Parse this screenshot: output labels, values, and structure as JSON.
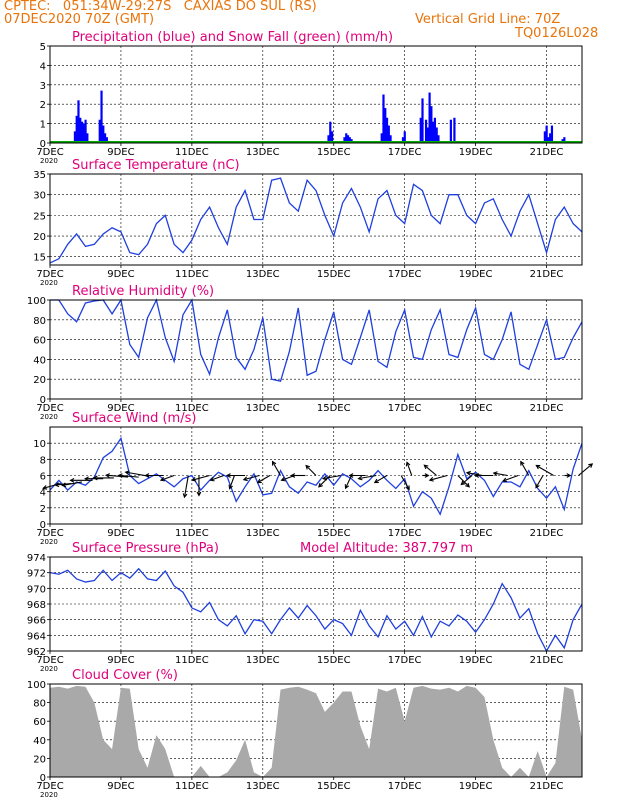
{
  "header": {
    "line1": "CPTEC:   051:34W-29:27S   CAXIAS DO SUL (RS)",
    "line2": "07DEC2020 70Z (GMT)",
    "grid_note": "Vertical Grid Line: 70Z",
    "code": "TQ0126L028",
    "color": "#e8740c"
  },
  "colors": {
    "title": "#e0007a",
    "line": "#1f3fdf",
    "precip": "#0000ff",
    "snow": "#00aa00",
    "cloud": "#a9a9a9",
    "arrow": "#000000"
  },
  "x_axis": {
    "start_day": 7,
    "end_day": 22,
    "tick_labels": [
      "7DEC",
      "9DEC",
      "11DEC",
      "13DEC",
      "15DEC",
      "17DEC",
      "19DEC",
      "21DEC"
    ],
    "tick_days": [
      7,
      9,
      11,
      13,
      15,
      17,
      19,
      21
    ],
    "corner_label": "2020"
  },
  "chart_data": [
    {
      "type": "bar",
      "title": "Precipitation (blue) and Snow Fall (green) (mm/h)",
      "ylim": [
        0,
        5
      ],
      "yticks": [
        0,
        1,
        2,
        3,
        4,
        5
      ],
      "series": [
        {
          "name": "Precipitation",
          "x": [
            7.7,
            7.75,
            7.8,
            7.85,
            7.9,
            7.95,
            8.0,
            8.05,
            8.4,
            8.45,
            8.5,
            8.55,
            8.6,
            14.85,
            14.9,
            14.95,
            15.3,
            15.35,
            15.4,
            15.45,
            15.5,
            16.35,
            16.4,
            16.45,
            16.5,
            16.55,
            16.6,
            16.95,
            17.0,
            17.45,
            17.5,
            17.6,
            17.65,
            17.7,
            17.75,
            17.8,
            17.85,
            17.9,
            17.95,
            18.3,
            18.4,
            20.95,
            21.0,
            21.05,
            21.1,
            21.15,
            21.45,
            21.5
          ],
          "values": [
            0.6,
            1.4,
            2.2,
            1.3,
            1.1,
            1.0,
            1.2,
            0.5,
            1.2,
            2.7,
            0.9,
            0.5,
            0.3,
            0.4,
            1.1,
            0.6,
            0.3,
            0.5,
            0.4,
            0.3,
            0.2,
            0.5,
            2.5,
            1.8,
            1.3,
            0.9,
            0.4,
            0.3,
            0.6,
            1.3,
            2.3,
            1.2,
            0.8,
            2.6,
            1.9,
            1.1,
            1.3,
            0.8,
            0.4,
            1.2,
            1.3,
            0.6,
            0.9,
            0.3,
            0.5,
            0.9,
            0.2,
            0.3
          ]
        },
        {
          "name": "Snow Fall",
          "x": [],
          "values": []
        }
      ]
    },
    {
      "type": "line",
      "title": "Surface Temperature (nC)",
      "ylim": [
        13,
        35
      ],
      "yticks": [
        15,
        20,
        25,
        30,
        35
      ],
      "x": [
        7.0,
        7.25,
        7.5,
        7.75,
        8.0,
        8.25,
        8.5,
        8.75,
        9.0,
        9.25,
        9.5,
        9.75,
        10.0,
        10.25,
        10.5,
        10.75,
        11.0,
        11.25,
        11.5,
        11.75,
        12.0,
        12.25,
        12.5,
        12.75,
        13.0,
        13.25,
        13.5,
        13.75,
        14.0,
        14.25,
        14.5,
        14.75,
        15.0,
        15.25,
        15.5,
        15.75,
        16.0,
        16.25,
        16.5,
        16.75,
        17.0,
        17.25,
        17.5,
        17.75,
        18.0,
        18.25,
        18.5,
        18.75,
        19.0,
        19.25,
        19.5,
        19.75,
        20.0,
        20.25,
        20.5,
        20.75,
        21.0,
        21.25,
        21.5,
        21.75,
        22.0
      ],
      "values": [
        13.5,
        14.5,
        18,
        20.5,
        17.5,
        18,
        20.5,
        22,
        21,
        16,
        15.5,
        18,
        23,
        25,
        18,
        16,
        19,
        24,
        27,
        22,
        18,
        27,
        31,
        24,
        24,
        33.5,
        34,
        28,
        26,
        33.5,
        31,
        25,
        20,
        28,
        31.5,
        27,
        21,
        29,
        31,
        25,
        23,
        32.5,
        31,
        25,
        23,
        30,
        30,
        25,
        23,
        28,
        29,
        24,
        20,
        26,
        30,
        23,
        16,
        24,
        27,
        23,
        21
      ]
    },
    {
      "type": "line",
      "title": "Relative Humidity (%)",
      "ylim": [
        0,
        100
      ],
      "yticks": [
        0,
        20,
        40,
        60,
        80,
        100
      ],
      "x": [
        7.0,
        7.25,
        7.5,
        7.75,
        8.0,
        8.25,
        8.5,
        8.75,
        9.0,
        9.25,
        9.5,
        9.75,
        10.0,
        10.25,
        10.5,
        10.75,
        11.0,
        11.25,
        11.5,
        11.75,
        12.0,
        12.25,
        12.5,
        12.75,
        13.0,
        13.25,
        13.5,
        13.75,
        14.0,
        14.25,
        14.5,
        14.75,
        15.0,
        15.25,
        15.5,
        15.75,
        16.0,
        16.25,
        16.5,
        16.75,
        17.0,
        17.25,
        17.5,
        17.75,
        18.0,
        18.25,
        18.5,
        18.75,
        19.0,
        19.25,
        19.5,
        19.75,
        20.0,
        20.25,
        20.5,
        20.75,
        21.0,
        21.25,
        21.5,
        21.75,
        22.0
      ],
      "values": [
        100,
        100,
        86,
        78,
        97,
        99,
        100,
        86,
        100,
        55,
        42,
        82,
        100,
        62,
        38,
        85,
        100,
        45,
        25,
        62,
        90,
        42,
        30,
        50,
        82,
        20,
        18,
        48,
        92,
        24,
        28,
        60,
        88,
        40,
        35,
        62,
        90,
        38,
        32,
        68,
        90,
        42,
        40,
        70,
        90,
        45,
        42,
        70,
        92,
        45,
        40,
        60,
        88,
        35,
        30,
        55,
        80,
        40,
        42,
        62,
        78
      ]
    },
    {
      "type": "line",
      "title": "Surface Wind (m/s)",
      "ylim": [
        0,
        12
      ],
      "yticks": [
        0,
        2,
        4,
        6,
        8,
        10
      ],
      "x": [
        7.0,
        7.25,
        7.5,
        7.75,
        8.0,
        8.25,
        8.5,
        8.75,
        9.0,
        9.25,
        9.5,
        9.75,
        10.0,
        10.25,
        10.5,
        10.75,
        11.0,
        11.25,
        11.5,
        11.75,
        12.0,
        12.25,
        12.5,
        12.75,
        13.0,
        13.25,
        13.5,
        13.75,
        14.0,
        14.25,
        14.5,
        14.75,
        15.0,
        15.25,
        15.5,
        15.75,
        16.0,
        16.25,
        16.5,
        16.75,
        17.0,
        17.25,
        17.5,
        17.75,
        18.0,
        18.25,
        18.5,
        18.75,
        19.0,
        19.25,
        19.5,
        19.75,
        20.0,
        20.25,
        20.5,
        20.75,
        21.0,
        21.25,
        21.5,
        21.75,
        22.0
      ],
      "values": [
        4.2,
        5.4,
        4.2,
        5.2,
        4.8,
        5.8,
        8.2,
        9.0,
        10.6,
        6.0,
        5.0,
        5.6,
        6.2,
        5.4,
        4.6,
        5.6,
        6.0,
        4.2,
        5.4,
        6.4,
        5.8,
        2.8,
        4.6,
        6.2,
        3.6,
        3.8,
        6.6,
        4.6,
        3.8,
        5.2,
        4.8,
        6.2,
        4.8,
        6.2,
        5.6,
        4.6,
        5.4,
        6.6,
        5.4,
        4.4,
        5.6,
        2.2,
        4.0,
        3.2,
        1.2,
        4.6,
        8.6,
        5.6,
        6.4,
        5.4,
        3.4,
        5.2,
        5.2,
        4.6,
        6.6,
        4.4,
        3.2,
        4.6,
        1.8,
        6.8,
        10.0
      ]
    },
    {
      "type": "line",
      "title": "Surface Pressure (hPa)",
      "annotation": "Model Altitude: 387.797 m",
      "ylim": [
        962,
        974
      ],
      "yticks": [
        962,
        964,
        966,
        968,
        970,
        972,
        974
      ],
      "x": [
        7.0,
        7.25,
        7.5,
        7.75,
        8.0,
        8.25,
        8.5,
        8.75,
        9.0,
        9.25,
        9.5,
        9.75,
        10.0,
        10.25,
        10.5,
        10.75,
        11.0,
        11.25,
        11.5,
        11.75,
        12.0,
        12.25,
        12.5,
        12.75,
        13.0,
        13.25,
        13.5,
        13.75,
        14.0,
        14.25,
        14.5,
        14.75,
        15.0,
        15.25,
        15.5,
        15.75,
        16.0,
        16.25,
        16.5,
        16.75,
        17.0,
        17.25,
        17.5,
        17.75,
        18.0,
        18.25,
        18.5,
        18.75,
        19.0,
        19.25,
        19.5,
        19.75,
        20.0,
        20.25,
        20.5,
        20.75,
        21.0,
        21.25,
        21.5,
        21.75,
        22.0
      ],
      "values": [
        972.0,
        971.8,
        972.3,
        971.2,
        970.8,
        971.0,
        972.3,
        971.0,
        972.0,
        971.3,
        972.5,
        971.2,
        971.0,
        972.2,
        970.3,
        969.5,
        967.5,
        967.0,
        968.2,
        966.0,
        965.2,
        966.5,
        964.2,
        966.0,
        965.8,
        964.2,
        966.0,
        967.5,
        966.2,
        967.8,
        966.5,
        964.8,
        966.0,
        965.5,
        964.0,
        967.2,
        965.2,
        963.8,
        966.5,
        964.8,
        965.8,
        964.0,
        966.4,
        963.8,
        965.8,
        965.2,
        966.6,
        965.8,
        964.4,
        966.0,
        968.0,
        970.6,
        968.8,
        966.2,
        967.4,
        964.2,
        962.0,
        964.0,
        962.4,
        966.0,
        968.0
      ]
    },
    {
      "type": "area",
      "title": "Cloud Cover (%)",
      "ylim": [
        0,
        100
      ],
      "yticks": [
        0,
        20,
        40,
        60,
        80,
        100
      ],
      "x": [
        7.0,
        7.25,
        7.5,
        7.75,
        8.0,
        8.25,
        8.5,
        8.75,
        9.0,
        9.25,
        9.5,
        9.75,
        10.0,
        10.25,
        10.5,
        10.75,
        11.0,
        11.25,
        11.5,
        11.75,
        12.0,
        12.25,
        12.5,
        12.75,
        13.0,
        13.25,
        13.5,
        13.75,
        14.0,
        14.25,
        14.5,
        14.75,
        15.0,
        15.25,
        15.5,
        15.75,
        16.0,
        16.25,
        16.5,
        16.75,
        17.0,
        17.25,
        17.5,
        17.75,
        18.0,
        18.25,
        18.5,
        18.75,
        19.0,
        19.25,
        19.5,
        19.75,
        20.0,
        20.25,
        20.5,
        20.75,
        21.0,
        21.25,
        21.5,
        21.75,
        22.0
      ],
      "values": [
        96,
        97,
        95,
        98,
        97,
        80,
        40,
        30,
        96,
        95,
        30,
        10,
        45,
        30,
        0,
        0,
        0,
        12,
        0,
        0,
        5,
        18,
        40,
        5,
        0,
        10,
        94,
        96,
        97,
        94,
        90,
        70,
        80,
        92,
        92,
        55,
        30,
        95,
        92,
        96,
        60,
        96,
        98,
        95,
        94,
        96,
        92,
        98,
        96,
        86,
        40,
        10,
        0,
        10,
        0,
        28,
        0,
        15,
        97,
        94,
        40
      ]
    }
  ],
  "wind_arrows": {
    "x": [
      7.3,
      7.6,
      7.9,
      8.2,
      8.5,
      8.8,
      9.2,
      9.5,
      9.8,
      10.2,
      10.5,
      10.9,
      11.2,
      11.5,
      11.9,
      12.2,
      12.5,
      12.9,
      13.2,
      13.5,
      13.9,
      14.2,
      14.5,
      14.9,
      15.2,
      15.5,
      15.9,
      16.2,
      16.5,
      16.9,
      17.2,
      17.5,
      17.9,
      18.2,
      18.5,
      18.9,
      19.2,
      19.5,
      19.9,
      20.2,
      20.5,
      20.9,
      21.2,
      21.5,
      21.9
    ],
    "y": [
      5.0,
      5.0,
      5.2,
      5.4,
      5.6,
      5.7,
      5.8,
      5.8,
      5.9,
      6.0,
      6.0,
      6.0,
      6.0,
      6.0,
      6.0,
      6.0,
      6.0,
      6.0,
      6.0,
      6.0,
      6.0,
      6.0,
      6.0,
      6.0,
      6.0,
      6.0,
      6.0,
      6.0,
      6.0,
      6.0,
      6.0,
      6.0,
      6.0,
      6.0,
      6.0,
      6.0,
      6.0,
      6.0,
      6.0,
      6.0,
      6.0,
      6.0,
      6.0,
      6.0,
      6.0
    ],
    "angle_deg": [
      195,
      185,
      190,
      180,
      180,
      180,
      175,
      175,
      170,
      180,
      200,
      260,
      270,
      195,
      200,
      250,
      180,
      195,
      210,
      120,
      200,
      180,
      135,
      225,
      190,
      245,
      180,
      190,
      210,
      300,
      110,
      0,
      140,
      195,
      315,
      220,
      170,
      180,
      170,
      200,
      120,
      240,
      150,
      0,
      40
    ],
    "length": [
      18,
      16,
      20,
      22,
      18,
      20,
      22,
      20,
      24,
      18,
      14,
      22,
      20,
      18,
      14,
      14,
      18,
      16,
      14,
      16,
      14,
      14,
      14,
      16,
      18,
      14,
      16,
      18,
      14,
      16,
      14,
      6,
      16,
      18,
      16,
      14,
      16,
      18,
      14,
      16,
      16,
      14,
      20,
      6,
      18
    ]
  },
  "panel_labels": {
    "p0": "Precipitation (blue) and Snow Fall (green) (mm/h)",
    "p1": "Surface Temperature (nC)",
    "p2": "Relative Humidity (%)",
    "p3": "Surface Wind (m/s)",
    "p4": "Surface Pressure (hPa)",
    "p4_extra": "Model Altitude: 387.797 m",
    "p5": "Cloud Cover (%)"
  }
}
